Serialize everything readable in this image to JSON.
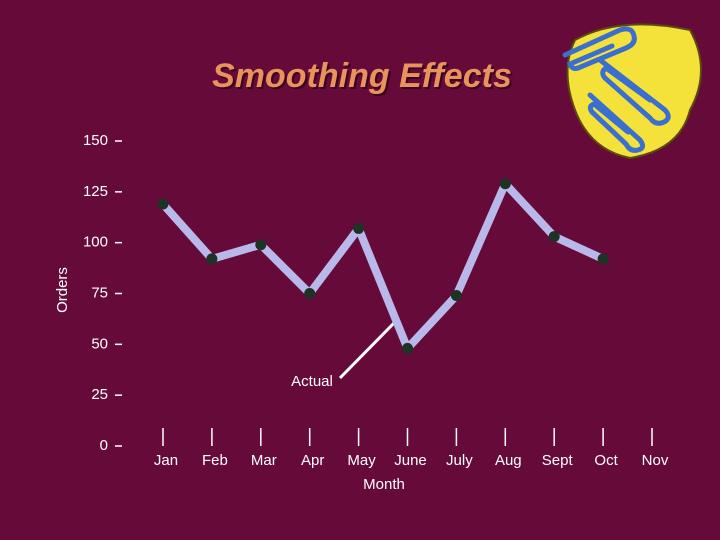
{
  "chart_data": {
    "type": "line",
    "title": "Smoothing Effects",
    "x_label": "Month",
    "y_label": "Orders",
    "annotation": "Actual",
    "categories": [
      "Jan",
      "Feb",
      "Mar",
      "Apr",
      "May",
      "June",
      "July",
      "Aug",
      "Sept",
      "Oct",
      "Nov"
    ],
    "series": [
      {
        "name": "Actual",
        "color": "#b8b8ea",
        "marker_color": "#1c3326",
        "values": [
          119,
          92,
          99,
          75,
          107,
          48,
          74,
          129,
          103,
          92,
          null
        ]
      }
    ],
    "ylim": [
      0,
      150
    ],
    "yticks": [
      0,
      25,
      50,
      75,
      100,
      125,
      150
    ]
  }
}
